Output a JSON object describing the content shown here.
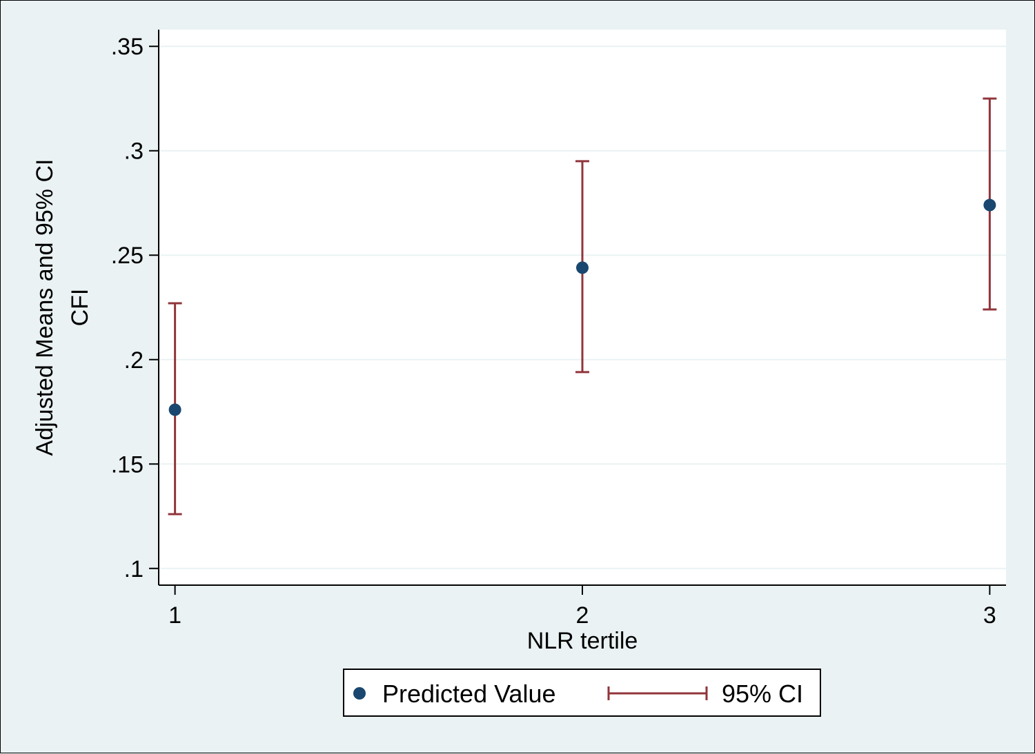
{
  "chart_data": {
    "type": "scatter",
    "title": "",
    "xlabel": "NLR tertile",
    "ylabel_lines": [
      "Adjusted Means and 95% CI",
      "CFI"
    ],
    "x_ticks": [
      "1",
      "2",
      "3"
    ],
    "y_ticks": [
      ".1",
      ".15",
      ".2",
      ".25",
      ".3",
      ".35"
    ],
    "y_tick_values": [
      0.1,
      0.15,
      0.2,
      0.25,
      0.3,
      0.35
    ],
    "xlim": [
      0.96,
      3.04
    ],
    "ylim": [
      0.092,
      0.358
    ],
    "grid": true,
    "legend_position": "bottom",
    "series": [
      {
        "name": "Predicted Value",
        "x": [
          1,
          2,
          3
        ],
        "values": [
          0.176,
          0.244,
          0.274
        ],
        "color": "#1a476f"
      }
    ],
    "confidence_interval": {
      "name": "95% CI",
      "lower": [
        0.126,
        0.194,
        0.224
      ],
      "upper": [
        0.227,
        0.295,
        0.325
      ],
      "color": "#90353b"
    },
    "colors": {
      "background": "#eaf2f3",
      "plot_background": "#ffffff",
      "grid": "#eaf2f3"
    }
  }
}
